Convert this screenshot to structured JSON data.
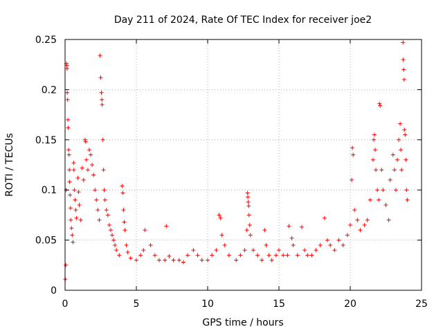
{
  "chart_data": {
    "type": "scatter",
    "title": "Day 211 of 2024, Rate Of TEC Index for receiver joe2",
    "xlabel": "GPS time / hours",
    "ylabel": "ROTI / TECUs",
    "xlim": [
      0,
      25
    ],
    "ylim": [
      0,
      0.25
    ],
    "x_ticks": [
      "0",
      "5",
      "10",
      "15",
      "20",
      "25"
    ],
    "y_ticks": [
      "0",
      "0.05",
      "0.1",
      "0.15",
      "0.2",
      "0.25"
    ],
    "grid": true,
    "marker": "+",
    "series": [
      {
        "color": "#ff0000",
        "points": [
          [
            0.02,
            0.011
          ],
          [
            0.05,
            0.025
          ],
          [
            0.08,
            0.1
          ],
          [
            0.1,
            0.226
          ],
          [
            0.12,
            0.224
          ],
          [
            0.14,
            0.221
          ],
          [
            0.15,
            0.197
          ],
          [
            0.18,
            0.19
          ],
          [
            0.2,
            0.17
          ],
          [
            0.22,
            0.162
          ],
          [
            0.25,
            0.14
          ],
          [
            0.28,
            0.135
          ],
          [
            0.3,
            0.12
          ],
          [
            0.32,
            0.108
          ],
          [
            0.35,
            0.095
          ],
          [
            0.38,
            0.082
          ],
          [
            0.4,
            0.07
          ],
          [
            0.45,
            0.062
          ],
          [
            0.5,
            0.055
          ],
          [
            0.55,
            0.048
          ],
          [
            0.6,
            0.127
          ],
          [
            0.62,
            0.12
          ],
          [
            0.65,
            0.1
          ],
          [
            0.7,
            0.09
          ],
          [
            0.75,
            0.08
          ],
          [
            0.8,
            0.072
          ],
          [
            0.9,
            0.112
          ],
          [
            0.95,
            0.098
          ],
          [
            1.0,
            0.085
          ],
          [
            1.1,
            0.07
          ],
          [
            1.2,
            0.122
          ],
          [
            1.3,
            0.11
          ],
          [
            1.4,
            0.15
          ],
          [
            1.45,
            0.148
          ],
          [
            1.5,
            0.13
          ],
          [
            1.6,
            0.12
          ],
          [
            1.7,
            0.14
          ],
          [
            1.8,
            0.135
          ],
          [
            1.9,
            0.125
          ],
          [
            2.0,
            0.115
          ],
          [
            2.1,
            0.1
          ],
          [
            2.2,
            0.09
          ],
          [
            2.3,
            0.08
          ],
          [
            2.4,
            0.07
          ],
          [
            2.45,
            0.234
          ],
          [
            2.5,
            0.212
          ],
          [
            2.55,
            0.197
          ],
          [
            2.58,
            0.19
          ],
          [
            2.6,
            0.185
          ],
          [
            2.65,
            0.15
          ],
          [
            2.7,
            0.12
          ],
          [
            2.75,
            0.1
          ],
          [
            2.8,
            0.09
          ],
          [
            2.9,
            0.08
          ],
          [
            3.0,
            0.075
          ],
          [
            3.1,
            0.065
          ],
          [
            3.2,
            0.06
          ],
          [
            3.3,
            0.055
          ],
          [
            3.4,
            0.05
          ],
          [
            3.5,
            0.045
          ],
          [
            3.6,
            0.04
          ],
          [
            3.8,
            0.035
          ],
          [
            4.0,
            0.104
          ],
          [
            4.05,
            0.097
          ],
          [
            4.1,
            0.08
          ],
          [
            4.15,
            0.068
          ],
          [
            4.2,
            0.06
          ],
          [
            4.3,
            0.045
          ],
          [
            4.4,
            0.038
          ],
          [
            4.6,
            0.032
          ],
          [
            5.0,
            0.03
          ],
          [
            5.3,
            0.035
          ],
          [
            5.5,
            0.04
          ],
          [
            5.6,
            0.06
          ],
          [
            6.0,
            0.045
          ],
          [
            6.3,
            0.035
          ],
          [
            6.6,
            0.03
          ],
          [
            7.0,
            0.03
          ],
          [
            7.1,
            0.064
          ],
          [
            7.3,
            0.034
          ],
          [
            7.6,
            0.03
          ],
          [
            8.0,
            0.03
          ],
          [
            8.3,
            0.028
          ],
          [
            8.6,
            0.035
          ],
          [
            9.0,
            0.04
          ],
          [
            9.3,
            0.035
          ],
          [
            9.6,
            0.03
          ],
          [
            10.0,
            0.03
          ],
          [
            10.3,
            0.035
          ],
          [
            10.6,
            0.04
          ],
          [
            10.8,
            0.075
          ],
          [
            10.9,
            0.072
          ],
          [
            11.0,
            0.055
          ],
          [
            11.2,
            0.045
          ],
          [
            11.5,
            0.035
          ],
          [
            12.0,
            0.03
          ],
          [
            12.3,
            0.035
          ],
          [
            12.6,
            0.04
          ],
          [
            12.75,
            0.06
          ],
          [
            12.8,
            0.097
          ],
          [
            12.82,
            0.093
          ],
          [
            12.85,
            0.088
          ],
          [
            12.88,
            0.084
          ],
          [
            12.9,
            0.075
          ],
          [
            12.95,
            0.065
          ],
          [
            13.0,
            0.055
          ],
          [
            13.2,
            0.04
          ],
          [
            13.5,
            0.035
          ],
          [
            13.8,
            0.03
          ],
          [
            14.0,
            0.06
          ],
          [
            14.1,
            0.045
          ],
          [
            14.3,
            0.035
          ],
          [
            14.5,
            0.03
          ],
          [
            14.8,
            0.035
          ],
          [
            15.0,
            0.04
          ],
          [
            15.3,
            0.035
          ],
          [
            15.6,
            0.035
          ],
          [
            15.7,
            0.064
          ],
          [
            15.9,
            0.052
          ],
          [
            16.0,
            0.045
          ],
          [
            16.3,
            0.035
          ],
          [
            16.6,
            0.063
          ],
          [
            16.8,
            0.04
          ],
          [
            17.0,
            0.035
          ],
          [
            17.3,
            0.035
          ],
          [
            17.6,
            0.04
          ],
          [
            17.9,
            0.045
          ],
          [
            18.2,
            0.072
          ],
          [
            18.4,
            0.05
          ],
          [
            18.6,
            0.045
          ],
          [
            18.9,
            0.04
          ],
          [
            19.2,
            0.05
          ],
          [
            19.5,
            0.045
          ],
          [
            19.8,
            0.055
          ],
          [
            20.0,
            0.065
          ],
          [
            20.1,
            0.11
          ],
          [
            20.15,
            0.142
          ],
          [
            20.2,
            0.135
          ],
          [
            20.3,
            0.08
          ],
          [
            20.5,
            0.07
          ],
          [
            20.7,
            0.06
          ],
          [
            21.0,
            0.065
          ],
          [
            21.2,
            0.07
          ],
          [
            21.4,
            0.09
          ],
          [
            21.6,
            0.13
          ],
          [
            21.65,
            0.15
          ],
          [
            21.7,
            0.155
          ],
          [
            21.75,
            0.14
          ],
          [
            21.8,
            0.12
          ],
          [
            21.9,
            0.1
          ],
          [
            22.0,
            0.09
          ],
          [
            22.05,
            0.186
          ],
          [
            22.1,
            0.184
          ],
          [
            22.2,
            0.12
          ],
          [
            22.3,
            0.1
          ],
          [
            22.5,
            0.085
          ],
          [
            22.7,
            0.07
          ],
          [
            22.8,
            0.11
          ],
          [
            23.0,
            0.135
          ],
          [
            23.1,
            0.12
          ],
          [
            23.2,
            0.1
          ],
          [
            23.3,
            0.13
          ],
          [
            23.4,
            0.15
          ],
          [
            23.5,
            0.166
          ],
          [
            23.55,
            0.14
          ],
          [
            23.6,
            0.12
          ],
          [
            23.7,
            0.247
          ],
          [
            23.72,
            0.23
          ],
          [
            23.75,
            0.22
          ],
          [
            23.78,
            0.21
          ],
          [
            23.8,
            0.16
          ],
          [
            23.85,
            0.155
          ],
          [
            23.9,
            0.13
          ],
          [
            23.95,
            0.1
          ],
          [
            24.0,
            0.09
          ]
        ]
      }
    ]
  }
}
